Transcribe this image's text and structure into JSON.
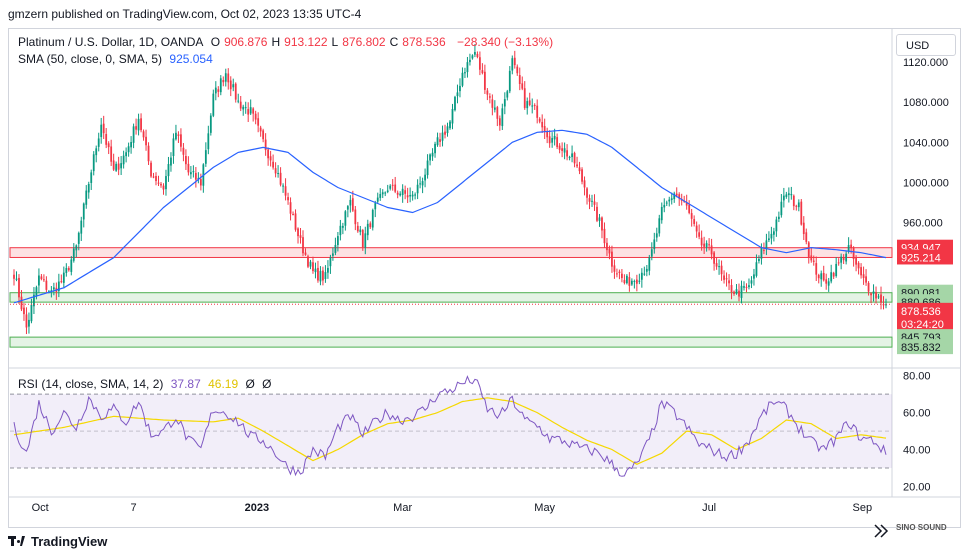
{
  "publisher_line": "gmzern published on TradingView.com, Oct 02, 2023 13:35 UTC-4",
  "legend": {
    "symbol": "Platinum / U.S. Dollar, 1D, OANDA",
    "o_label": "O",
    "o_value": "906.876",
    "h_label": "H",
    "h_value": "913.122",
    "l_label": "L",
    "l_value": "876.802",
    "c_label": "C",
    "c_value": "878.536",
    "change": "−28.340 (−3.13%)",
    "sma_label": "SMA (50, close, 0, SMA, 5)",
    "sma_value": "925.054",
    "rsi_label": "RSI (14, close, SMA, 14, 2)",
    "rsi_value": "37.87",
    "rsi_ma_value": "46.19",
    "rsi_extra_1": "Ø",
    "rsi_extra_2": "Ø"
  },
  "currency_button": "USD",
  "footer_brand": "TradingView",
  "watermark_text": "SINO SOUND",
  "colors": {
    "up": "#089981",
    "down": "#f23645",
    "sma": "#2962ff",
    "rsi": "#7e57c2",
    "rsi_ma": "#f5d800",
    "resistance_zone": "#f23645",
    "support_zone": "#4caf50"
  },
  "chart_data": {
    "type": "candlestick",
    "instrument": "Platinum / U.S. Dollar",
    "timeframe": "1D",
    "price_axis": {
      "ticks": [
        "1120.000",
        "1080.000",
        "1040.000",
        "1000.000",
        "960.000"
      ],
      "ylim": [
        818,
        1152
      ],
      "badges": [
        {
          "value": 934.947,
          "label": "934.947",
          "color": "#f23645"
        },
        {
          "value": 925.214,
          "label": "925.214",
          "color": "#f23645"
        },
        {
          "value": 890.081,
          "label": "890.081",
          "color": "#a5d6a7"
        },
        {
          "value": 880.686,
          "label": "880.686",
          "color": "#a5d6a7"
        },
        {
          "value": 872.0,
          "label": "878.536",
          "sublabel": "03:24:20",
          "color": "#f23645"
        },
        {
          "value": 845.793,
          "label": "845.793",
          "color": "#a5d6a7"
        },
        {
          "value": 835.832,
          "label": "835.832",
          "color": "#a5d6a7"
        }
      ]
    },
    "zones": [
      {
        "name": "resistance",
        "from": 925.214,
        "to": 934.947
      },
      {
        "name": "support-upper",
        "from": 880.686,
        "to": 890.081
      },
      {
        "name": "support-lower",
        "from": 835.832,
        "to": 845.793
      }
    ],
    "time_axis": [
      "Oct",
      "7",
      "2023",
      "Mar",
      "May",
      "Jul",
      "Sep"
    ],
    "close_anchors": [
      [
        0,
        910
      ],
      [
        5,
        855
      ],
      [
        10,
        905
      ],
      [
        15,
        890
      ],
      [
        20,
        905
      ],
      [
        25,
        935
      ],
      [
        30,
        1000
      ],
      [
        35,
        1060
      ],
      [
        40,
        1010
      ],
      [
        45,
        1030
      ],
      [
        50,
        1065
      ],
      [
        55,
        1010
      ],
      [
        60,
        995
      ],
      [
        65,
        1050
      ],
      [
        70,
        1010
      ],
      [
        75,
        1000
      ],
      [
        80,
        1085
      ],
      [
        85,
        1110
      ],
      [
        90,
        1080
      ],
      [
        95,
        1070
      ],
      [
        100,
        1040
      ],
      [
        105,
        1015
      ],
      [
        110,
        980
      ],
      [
        115,
        940
      ],
      [
        120,
        910
      ],
      [
        125,
        905
      ],
      [
        130,
        950
      ],
      [
        135,
        980
      ],
      [
        140,
        940
      ],
      [
        145,
        975
      ],
      [
        150,
        995
      ],
      [
        155,
        990
      ],
      [
        160,
        985
      ],
      [
        165,
        1010
      ],
      [
        170,
        1040
      ],
      [
        175,
        1060
      ],
      [
        180,
        1110
      ],
      [
        185,
        1130
      ],
      [
        190,
        1090
      ],
      [
        195,
        1060
      ],
      [
        200,
        1120
      ],
      [
        205,
        1080
      ],
      [
        210,
        1070
      ],
      [
        215,
        1045
      ],
      [
        220,
        1035
      ],
      [
        225,
        1020
      ],
      [
        230,
        990
      ],
      [
        235,
        960
      ],
      [
        240,
        920
      ],
      [
        245,
        900
      ],
      [
        250,
        905
      ],
      [
        255,
        920
      ],
      [
        260,
        970
      ],
      [
        265,
        990
      ],
      [
        270,
        975
      ],
      [
        275,
        940
      ],
      [
        280,
        930
      ],
      [
        285,
        900
      ],
      [
        290,
        890
      ],
      [
        295,
        895
      ],
      [
        300,
        930
      ],
      [
        305,
        955
      ],
      [
        310,
        990
      ],
      [
        315,
        975
      ],
      [
        320,
        920
      ],
      [
        325,
        900
      ],
      [
        330,
        915
      ],
      [
        335,
        935
      ],
      [
        340,
        905
      ],
      [
        345,
        890
      ],
      [
        350,
        878.536
      ]
    ],
    "sma_anchors": [
      [
        0,
        880
      ],
      [
        20,
        895
      ],
      [
        40,
        925
      ],
      [
        60,
        975
      ],
      [
        80,
        1015
      ],
      [
        90,
        1030
      ],
      [
        100,
        1035
      ],
      [
        110,
        1030
      ],
      [
        120,
        1010
      ],
      [
        130,
        995
      ],
      [
        140,
        985
      ],
      [
        150,
        975
      ],
      [
        160,
        970
      ],
      [
        170,
        980
      ],
      [
        180,
        1000
      ],
      [
        190,
        1020
      ],
      [
        200,
        1040
      ],
      [
        210,
        1050
      ],
      [
        220,
        1052
      ],
      [
        230,
        1048
      ],
      [
        240,
        1035
      ],
      [
        250,
        1015
      ],
      [
        260,
        995
      ],
      [
        270,
        980
      ],
      [
        280,
        965
      ],
      [
        290,
        950
      ],
      [
        300,
        935
      ],
      [
        310,
        930
      ],
      [
        320,
        935
      ],
      [
        330,
        933
      ],
      [
        340,
        930
      ],
      [
        350,
        925.054
      ]
    ],
    "rsi": {
      "ticks": [
        "80.00",
        "60.00",
        "40.00",
        "20.00"
      ],
      "ylim": [
        17,
        82
      ],
      "band": [
        30,
        70
      ],
      "midline": 50,
      "anchors": [
        [
          0,
          52
        ],
        [
          5,
          38
        ],
        [
          10,
          65
        ],
        [
          15,
          50
        ],
        [
          20,
          60
        ],
        [
          25,
          52
        ],
        [
          30,
          68
        ],
        [
          35,
          58
        ],
        [
          40,
          62
        ],
        [
          45,
          55
        ],
        [
          50,
          66
        ],
        [
          55,
          48
        ],
        [
          60,
          50
        ],
        [
          65,
          58
        ],
        [
          70,
          45
        ],
        [
          75,
          40
        ],
        [
          80,
          62
        ],
        [
          85,
          60
        ],
        [
          90,
          55
        ],
        [
          95,
          47
        ],
        [
          100,
          45
        ],
        [
          105,
          38
        ],
        [
          110,
          30
        ],
        [
          115,
          28
        ],
        [
          120,
          40
        ],
        [
          125,
          36
        ],
        [
          130,
          52
        ],
        [
          135,
          58
        ],
        [
          140,
          48
        ],
        [
          145,
          55
        ],
        [
          150,
          60
        ],
        [
          155,
          56
        ],
        [
          160,
          58
        ],
        [
          165,
          62
        ],
        [
          170,
          70
        ],
        [
          175,
          72
        ],
        [
          180,
          76
        ],
        [
          185,
          78
        ],
        [
          190,
          62
        ],
        [
          195,
          58
        ],
        [
          200,
          67
        ],
        [
          205,
          56
        ],
        [
          210,
          53
        ],
        [
          215,
          46
        ],
        [
          220,
          45
        ],
        [
          225,
          42
        ],
        [
          230,
          40
        ],
        [
          235,
          38
        ],
        [
          240,
          32
        ],
        [
          245,
          26
        ],
        [
          250,
          32
        ],
        [
          255,
          45
        ],
        [
          260,
          65
        ],
        [
          265,
          60
        ],
        [
          270,
          52
        ],
        [
          275,
          43
        ],
        [
          280,
          40
        ],
        [
          285,
          36
        ],
        [
          290,
          38
        ],
        [
          295,
          45
        ],
        [
          300,
          58
        ],
        [
          305,
          66
        ],
        [
          310,
          62
        ],
        [
          315,
          52
        ],
        [
          320,
          44
        ],
        [
          325,
          40
        ],
        [
          330,
          46
        ],
        [
          335,
          55
        ],
        [
          340,
          46
        ],
        [
          345,
          45
        ],
        [
          350,
          37.87
        ]
      ],
      "ma_anchors": [
        [
          0,
          48
        ],
        [
          20,
          52
        ],
        [
          40,
          58
        ],
        [
          60,
          56
        ],
        [
          80,
          55
        ],
        [
          90,
          57
        ],
        [
          100,
          50
        ],
        [
          110,
          42
        ],
        [
          120,
          34
        ],
        [
          130,
          40
        ],
        [
          140,
          48
        ],
        [
          150,
          54
        ],
        [
          160,
          56
        ],
        [
          170,
          60
        ],
        [
          180,
          66
        ],
        [
          190,
          68
        ],
        [
          200,
          66
        ],
        [
          210,
          60
        ],
        [
          220,
          52
        ],
        [
          230,
          45
        ],
        [
          240,
          40
        ],
        [
          250,
          32
        ],
        [
          260,
          38
        ],
        [
          270,
          50
        ],
        [
          280,
          48
        ],
        [
          290,
          40
        ],
        [
          300,
          46
        ],
        [
          310,
          56
        ],
        [
          320,
          54
        ],
        [
          330,
          46
        ],
        [
          340,
          48
        ],
        [
          350,
          46.19
        ]
      ]
    }
  }
}
